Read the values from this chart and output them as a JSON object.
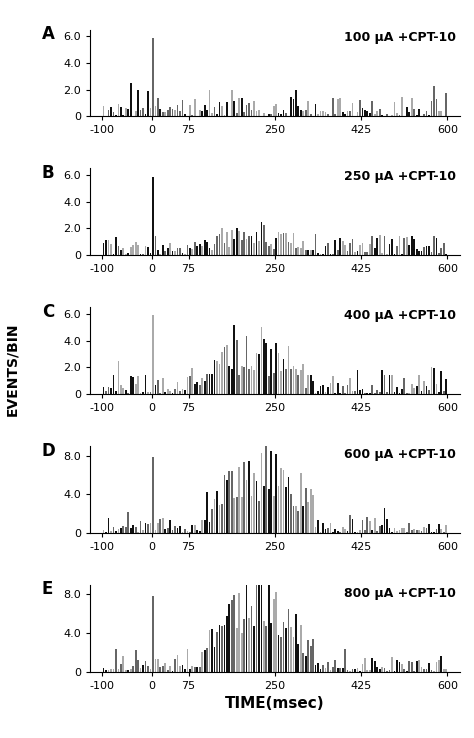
{
  "panels": [
    {
      "label": "A",
      "title": "100 μA +CPT-10",
      "ylim": [
        0,
        6.5
      ],
      "yticks": [
        0,
        2.0,
        4.0,
        6.0
      ],
      "ymax": 6,
      "ytick_labels": [
        "0",
        "2.0",
        "4.0",
        "6.0"
      ]
    },
    {
      "label": "B",
      "title": "250 μA +CPT-10",
      "ylim": [
        0,
        6.5
      ],
      "yticks": [
        0,
        2.0,
        4.0,
        6.0
      ],
      "ymax": 6,
      "ytick_labels": [
        "0",
        "2.0",
        "4.0",
        "6.0"
      ]
    },
    {
      "label": "C",
      "title": "400 μA +CPT-10",
      "ylim": [
        0,
        6.5
      ],
      "yticks": [
        0,
        2.0,
        4.0,
        6.0
      ],
      "ymax": 6,
      "ytick_labels": [
        "0",
        "2.0",
        "4.0",
        "6.0"
      ]
    },
    {
      "label": "D",
      "title": "600 μA +CPT-10",
      "ylim": [
        0,
        9.0
      ],
      "yticks": [
        0,
        4.0,
        8.0
      ],
      "ymax": 8,
      "ytick_labels": [
        "0",
        "4.0",
        "8.0"
      ]
    },
    {
      "label": "E",
      "title": "800 μA +CPT-10",
      "ylim": [
        0,
        9.0
      ],
      "yticks": [
        0,
        4.0,
        8.0
      ],
      "ymax": 8,
      "ytick_labels": [
        "0",
        "4.0",
        "8.0"
      ]
    }
  ],
  "xlim": [
    -125,
    625
  ],
  "xticks": [
    -100,
    0,
    75,
    250,
    425,
    600
  ],
  "xlabel": "TIME(msec)",
  "ylabel": "EVENTS/BIN",
  "bin_width": 5,
  "bg_color": "#ffffff"
}
